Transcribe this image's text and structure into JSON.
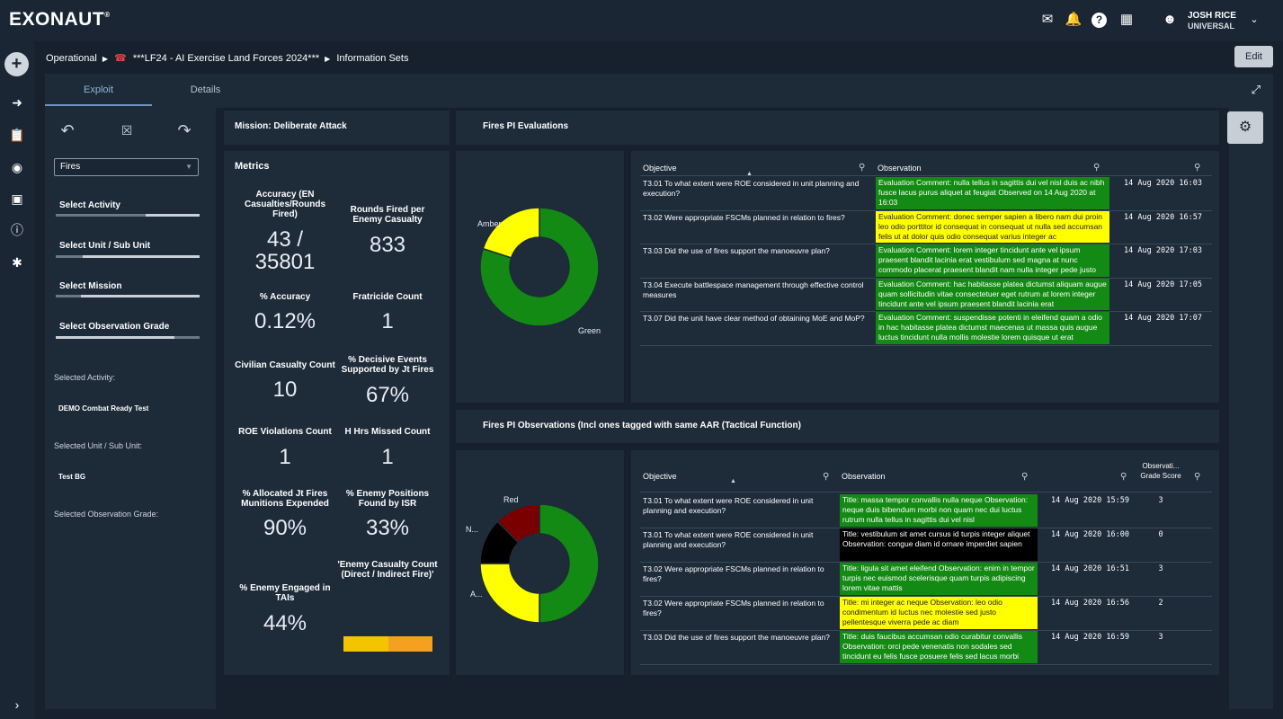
{
  "app": {
    "logo": "EXONAUT",
    "logo_mark": "®",
    "user_name": "JOSH RICE",
    "user_org": "UNIVERSAL"
  },
  "breadcrumb": {
    "items": [
      "Operational",
      "***LF24 - AI Exercise Land Forces 2024***",
      "Information Sets"
    ]
  },
  "edit_label": "Edit",
  "tabs": [
    "Exploit",
    "Details"
  ],
  "filters": {
    "select_value": "Fires",
    "activity": "Select Activity",
    "unit": "Select Unit / Sub Unit",
    "mission": "Select Mission",
    "grade": "Select Observation Grade",
    "selected_activity_label": "Selected Activity:",
    "selected_activity_value": "DEMO Combat Ready Test",
    "selected_unit_label": "Selected Unit / Sub Unit:",
    "selected_unit_value": "Test BG",
    "selected_grade_label": "Selected Observation Grade:"
  },
  "mission_title": "Mission: Deliberate Attack",
  "metrics": {
    "title": "Metrics",
    "items": [
      {
        "label": "Accuracy (EN Casualties/Rounds Fired)",
        "value": "43 / 35801"
      },
      {
        "label": "Rounds Fired per Enemy Casualty",
        "value": "833"
      },
      {
        "label": "% Accuracy",
        "value": "0.12%"
      },
      {
        "label": "Fratricide Count",
        "value": "1"
      },
      {
        "label": "Civilian Casualty Count",
        "value": "10"
      },
      {
        "label": "% Decisive Events Supported by Jt Fires",
        "value": "67%"
      },
      {
        "label": "ROE Violations Count",
        "value": "1"
      },
      {
        "label": "H Hrs Missed Count",
        "value": "1"
      },
      {
        "label": "% Allocated Jt Fires Munitions Expended",
        "value": "90%"
      },
      {
        "label": "% Enemy Positions Found by ISR",
        "value": "33%"
      },
      {
        "label": "% Enemy Engaged in TAIs",
        "value": "44%"
      },
      {
        "label": "'Enemy Casualty Count (Direct / Indirect Fire)'",
        "value": ""
      }
    ]
  },
  "evaluations": {
    "title": "Fires PI Evaluations",
    "donut": {
      "slices": [
        {
          "label": "Green",
          "value": 4,
          "color": "#138a13"
        },
        {
          "label": "Amber",
          "value": 1,
          "color": "#ffff00"
        }
      ]
    },
    "headers": [
      "Objective",
      "Observation",
      ""
    ],
    "rows": [
      {
        "objective": "T3.01 To what extent were ROE considered in unit planning and execution?",
        "observation": "Evaluation Comment: nulla tellus in sagittis dui vel nisl duis ac nibh fusce lacus purus aliquet at feugiat Observed on 14 Aug 2020 at 16:03",
        "color": "green",
        "date": "14 Aug 2020 16:03"
      },
      {
        "objective": "T3.02 Were appropriate FSCMs planned in relation to fires?",
        "observation": "Evaluation Comment: donec semper sapien a libero nam dui proin leo odio porttitor id consequat in consequat ut nulla sed accumsan felis ut at dolor quis odio consequat varius integer ac",
        "color": "yellow",
        "date": "14 Aug 2020 16:57"
      },
      {
        "objective": "T3.03 Did the use of fires support the manoeuvre plan?",
        "observation": "Evaluation Comment: lorem integer tincidunt ante vel ipsum praesent blandit lacinia erat vestibulum sed magna at nunc commodo placerat praesent blandit nam nulla integer pede justo",
        "color": "green",
        "date": "14 Aug 2020 17:03"
      },
      {
        "objective": "T3.04 Execute battlespace management through effective control measures",
        "observation": "Evaluation Comment: hac habitasse platea dictumst aliquam augue quam sollicitudin vitae consectetuer eget rutrum at lorem integer tincidunt ante vel ipsum praesent blandit lacinia erat",
        "color": "green",
        "date": "14 Aug 2020 17:05"
      },
      {
        "objective": "T3.07 Did the unit have clear method of obtaining MoE and MoP?",
        "observation": "Evaluation Comment: suspendisse potenti in eleifend quam a odio in hac habitasse platea dictumst maecenas ut massa quis augue luctus tincidunt nulla mollis molestie lorem quisque ut erat",
        "color": "green",
        "date": "14 Aug 2020 17:07"
      }
    ]
  },
  "observations": {
    "title": "Fires PI Observations (Incl ones tagged with same AAR (Tactical Function)",
    "donut": {
      "slices": [
        {
          "label": "",
          "value": 10,
          "color": "#138a13"
        },
        {
          "label": "A...",
          "value": 5,
          "color": "#ffff00"
        },
        {
          "label": "N...",
          "value": 2.5,
          "color": "#000000"
        },
        {
          "label": "Red",
          "value": 2.5,
          "color": "#7a0000"
        }
      ]
    },
    "headers": [
      "Objective",
      "Observation",
      "",
      "Observati... Grade Score"
    ],
    "rows": [
      {
        "objective": "T3.01 To what extent were ROE considered in unit planning and execution?",
        "observation": "Title: massa tempor convallis nulla neque Observation: neque duis bibendum morbi non quam nec dui luctus rutrum nulla tellus in sagittis dui vel nisl",
        "color": "green",
        "date": "14 Aug 2020 15:59",
        "score": "3"
      },
      {
        "objective": "T3.01 To what extent were ROE considered in unit planning and execution?",
        "observation": "Title: vestibulum sit amet cursus id turpis integer aliquet Observation: congue diam id ornare imperdiet sapien",
        "color": "black",
        "date": "14 Aug 2020 16:00",
        "score": "0"
      },
      {
        "objective": "T3.02 Were appropriate FSCMs planned in relation to fires?",
        "observation": "Title: ligula sit amet eleifend Observation: enim in tempor turpis nec euismod scelerisque quam turpis adipiscing lorem vitae mattis",
        "color": "green",
        "date": "14 Aug 2020 16:51",
        "score": "3"
      },
      {
        "objective": "T3.02 Were appropriate FSCMs planned in relation to fires?",
        "observation": "Title: mi integer ac neque Observation: leo odio condimentum id luctus nec molestie sed justo pellentesque viverra pede ac diam",
        "color": "yellow",
        "date": "14 Aug 2020 16:56",
        "score": "2"
      },
      {
        "objective": "T3.03 Did the use of fires support the manoeuvre plan?",
        "observation": "Title: duis faucibus accumsan odio curabitur convallis Observation: orci pede venenatis non sodales sed tincidunt eu felis fusce posuere felis sed lacus morbi",
        "color": "green",
        "date": "14 Aug 2020 16:59",
        "score": "3"
      }
    ]
  }
}
